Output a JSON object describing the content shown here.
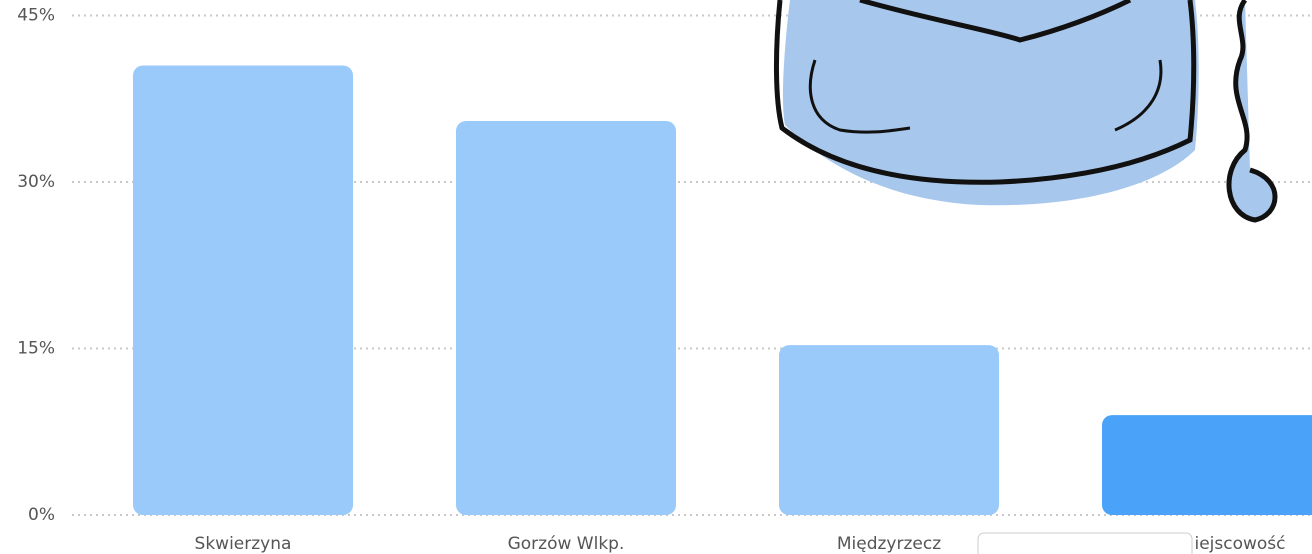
{
  "chart_data": {
    "type": "bar",
    "categories": [
      "Skwierzyna",
      "Gorzów Wlkp.",
      "Międzyrzecz",
      "iejscowość"
    ],
    "values": [
      40.5,
      35.5,
      15.3,
      9
    ],
    "colors": [
      "#99caf9",
      "#99caf9",
      "#99caf9",
      "#4aa3f8"
    ],
    "ylim": [
      0,
      45.5
    ],
    "yticks": [
      {
        "value": 0,
        "label": "0%"
      },
      {
        "value": 15,
        "label": "15%"
      },
      {
        "value": 30,
        "label": "30%"
      },
      {
        "value": 45,
        "label": "45%"
      }
    ],
    "grid": true
  }
}
